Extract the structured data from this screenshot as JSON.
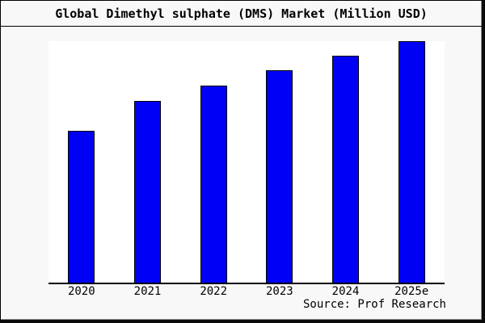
{
  "title": "Global Dimethyl sulphate (DMS) Market (Million USD)",
  "source_note": "Source: Prof Research",
  "colors": {
    "bar_fill": "#0000f5",
    "bar_border": "#000000",
    "page_background": "#f8f8f8",
    "plot_background": "#ffffff",
    "axis_line": "#000000",
    "frame_border": "#000000"
  },
  "chart_data": {
    "type": "bar",
    "categories": [
      "2020",
      "2021",
      "2022",
      "2023",
      "2024",
      "2025e"
    ],
    "values": [
      62.9,
      75.3,
      81.6,
      88.0,
      94.0,
      100
    ],
    "title": "Global Dimethyl sulphate (DMS) Market (Million USD)",
    "xlabel": "",
    "ylabel": "",
    "ylim": [
      0,
      100
    ],
    "grid": false,
    "legend": false,
    "y_axis_labels_shown": false,
    "note": "No y-axis scale is shown in the image; values are relative bar heights as a percentage of the tallest bar (2025e = 100)."
  }
}
